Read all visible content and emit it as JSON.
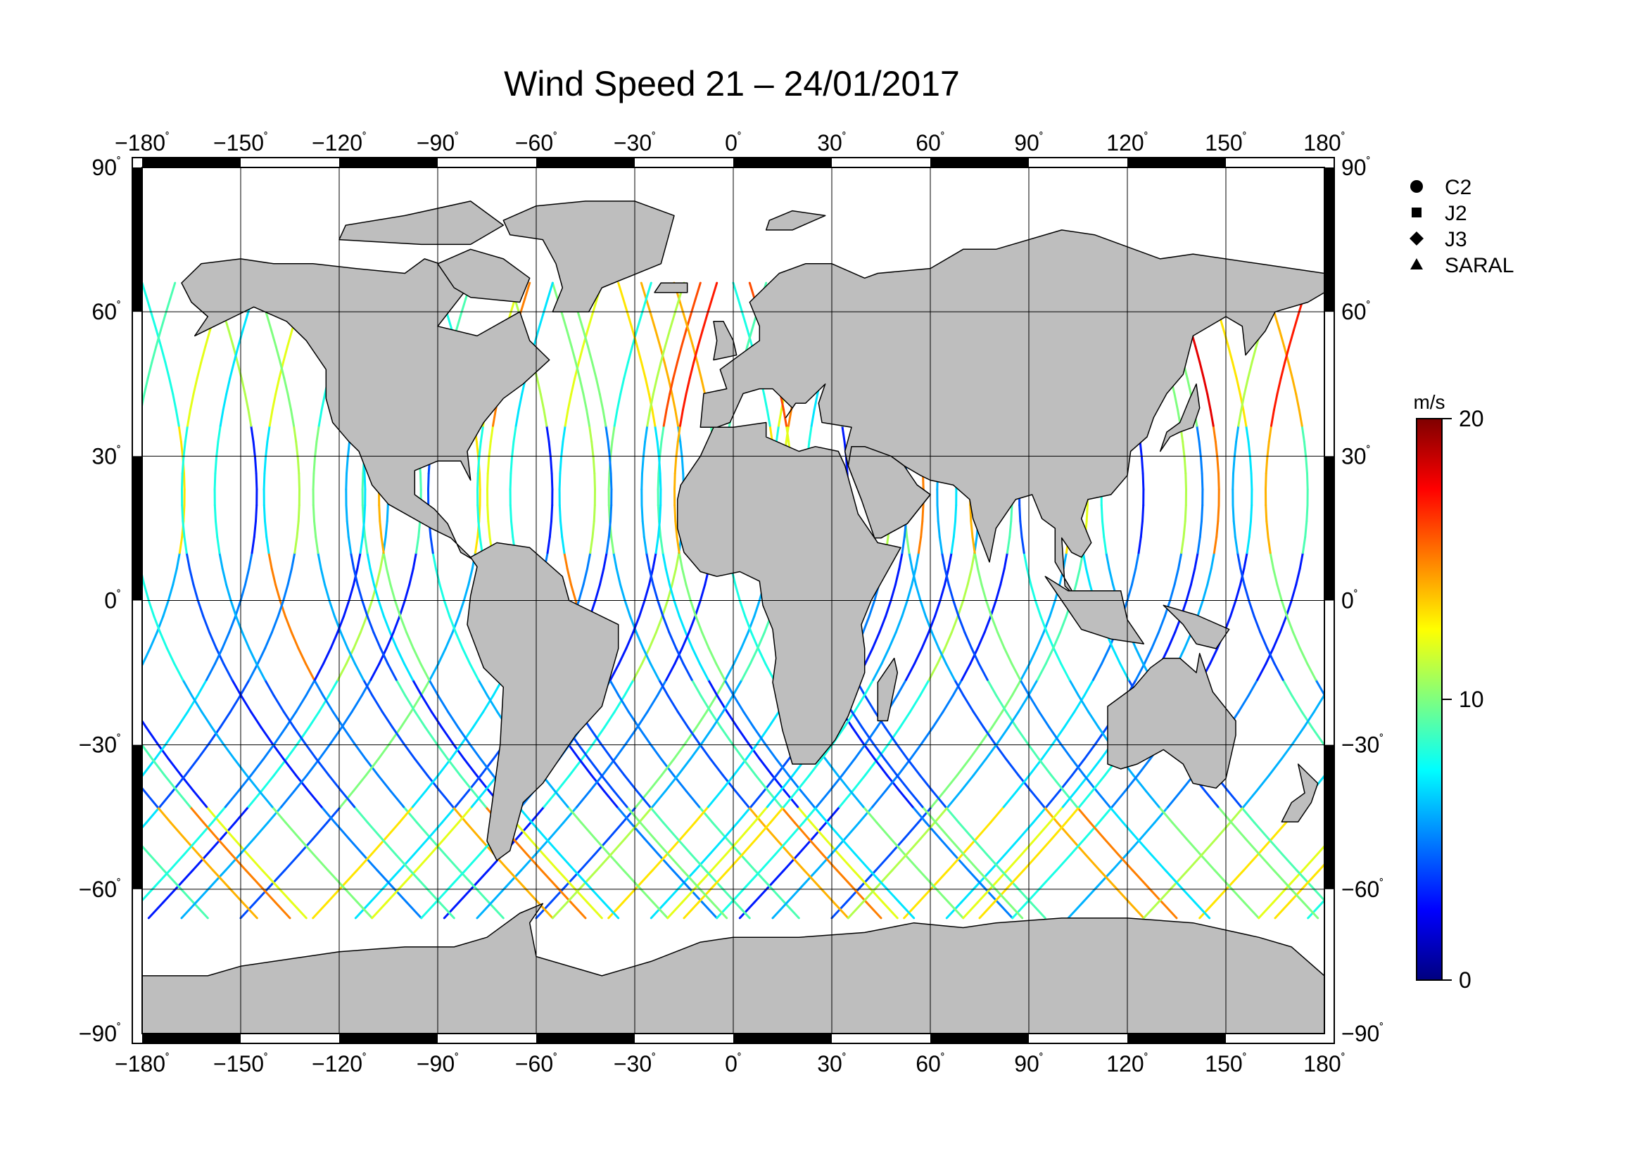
{
  "title": "Wind Speed 21 – 24/01/2017",
  "map": {
    "projection": "equirectangular",
    "lon_range": [
      -180,
      180
    ],
    "lat_range": [
      -90,
      90
    ],
    "lon_ticks": [
      "−180",
      "−150",
      "−120",
      "−90",
      "−60",
      "−30",
      "0",
      "30",
      "60",
      "90",
      "120",
      "150",
      "180"
    ],
    "lat_ticks": [
      "90",
      "60",
      "30",
      "0",
      "−30",
      "−60",
      "−90"
    ],
    "degree_symbol": "˚",
    "grid": true,
    "land_color": "#bebebe",
    "ocean_color": "#ffffff"
  },
  "legend": {
    "placement": "top-right",
    "items": [
      {
        "label": "C2",
        "marker": "circle"
      },
      {
        "label": "J2",
        "marker": "square"
      },
      {
        "label": "J3",
        "marker": "diamond"
      },
      {
        "label": "SARAL",
        "marker": "triangle"
      }
    ]
  },
  "colorbar": {
    "unit": "m/s",
    "min": 0,
    "max": 20,
    "tick_labels": [
      "20",
      "10",
      "0"
    ],
    "colormap": "jet",
    "colors": [
      "#00007f",
      "#0000ff",
      "#007fff",
      "#00ffff",
      "#7fff7f",
      "#ffff00",
      "#ff7f00",
      "#ff0000",
      "#7f0000"
    ]
  },
  "chart_data": {
    "type": "map-tracks",
    "variable": "Wind Speed",
    "unit": "m/s",
    "value_range": [
      0,
      20
    ],
    "tracks": [
      {
        "lon0": -178,
        "lat_span": [
          -66,
          66
        ],
        "dlon": 38,
        "v": [
          3,
          8,
          11,
          6,
          14
        ]
      },
      {
        "lon0": -160,
        "lat_span": [
          -66,
          66
        ],
        "dlon": -38,
        "v": [
          9,
          5,
          15,
          7,
          12
        ]
      },
      {
        "lon0": -150,
        "lat_span": [
          -66,
          66
        ],
        "dlon": 38,
        "v": [
          4,
          10,
          6,
          13,
          8
        ]
      },
      {
        "lon0": -130,
        "lat_span": [
          -66,
          66
        ],
        "dlon": -38,
        "v": [
          12,
          3,
          7,
          9,
          16
        ]
      },
      {
        "lon0": -115,
        "lat_span": [
          -66,
          66
        ],
        "dlon": 38,
        "v": [
          7,
          4,
          5,
          11,
          10
        ]
      },
      {
        "lon0": -95,
        "lat_span": [
          -66,
          66
        ],
        "dlon": -38,
        "v": [
          5,
          3,
          4,
          8,
          12
        ]
      },
      {
        "lon0": -78,
        "lat_span": [
          -66,
          66
        ],
        "dlon": 38,
        "v": [
          6,
          5,
          3,
          9,
          14
        ]
      },
      {
        "lon0": -55,
        "lat_span": [
          -66,
          66
        ],
        "dlon": -38,
        "v": [
          14,
          4,
          6,
          10,
          8
        ]
      },
      {
        "lon0": -38,
        "lat_span": [
          -66,
          66
        ],
        "dlon": 38,
        "v": [
          13,
          7,
          5,
          3,
          11
        ]
      },
      {
        "lon0": -20,
        "lat_span": [
          -66,
          66
        ],
        "dlon": -38,
        "v": [
          10,
          6,
          8,
          4,
          9
        ]
      },
      {
        "lon0": -5,
        "lat_span": [
          -66,
          66
        ],
        "dlon": 38,
        "v": [
          8,
          5,
          3,
          7,
          13
        ]
      },
      {
        "lon0": 45,
        "lat_span": [
          -66,
          66
        ],
        "dlon": -38,
        "v": [
          15,
          9,
          4,
          6,
          11
        ]
      },
      {
        "lon0": 70,
        "lat_span": [
          -66,
          66
        ],
        "dlon": 38,
        "v": [
          12,
          7,
          3,
          5,
          10
        ]
      },
      {
        "lon0": 95,
        "lat_span": [
          -66,
          66
        ],
        "dlon": -38,
        "v": [
          9,
          4,
          6,
          8,
          7
        ]
      },
      {
        "lon0": 125,
        "lat_span": [
          -66,
          66
        ],
        "dlon": 38,
        "v": [
          11,
          6,
          9,
          12,
          16
        ]
      },
      {
        "lon0": 145,
        "lat_span": [
          -66,
          66
        ],
        "dlon": -38,
        "v": [
          7,
          5,
          10,
          14,
          17
        ]
      },
      {
        "lon0": 165,
        "lat_span": [
          -66,
          66
        ],
        "dlon": 38,
        "v": [
          13,
          8,
          6,
          15,
          18
        ]
      },
      {
        "lon0": 178,
        "lat_span": [
          -66,
          66
        ],
        "dlon": -38,
        "v": [
          10,
          4,
          7,
          12,
          15
        ]
      }
    ]
  }
}
